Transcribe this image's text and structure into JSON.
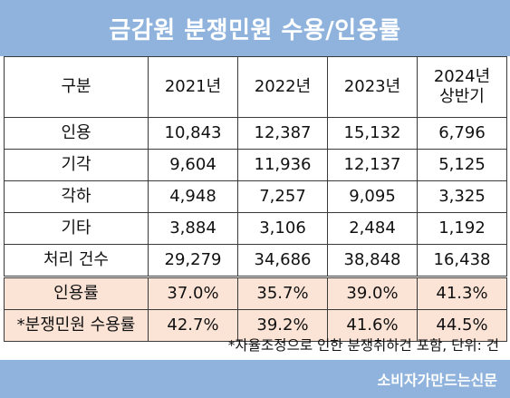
{
  "title": "금감원 분쟁민원 수용/인용률",
  "table": {
    "headers": [
      "구분",
      "2021년",
      "2022년",
      "2023년",
      [
        "2024년",
        "상반기"
      ]
    ],
    "rows": [
      {
        "label": "인용",
        "values": [
          "10,843",
          "12,387",
          "15,132",
          "6,796"
        ]
      },
      {
        "label": "기각",
        "values": [
          "9,604",
          "11,936",
          "12,137",
          "5,125"
        ]
      },
      {
        "label": "각하",
        "values": [
          "4,948",
          "7,257",
          "9,095",
          "3,325"
        ]
      },
      {
        "label": "기타",
        "values": [
          "3,884",
          "3,106",
          "2,484",
          "1,192"
        ]
      },
      {
        "label": "처리 건수",
        "values": [
          "29,279",
          "34,686",
          "38,848",
          "16,438"
        ]
      }
    ],
    "rate_rows": [
      {
        "label": "인용률",
        "values": [
          "37.0%",
          "35.7%",
          "39.0%",
          "41.3%"
        ]
      },
      {
        "label": "*분쟁민원 수용률",
        "values": [
          "42.7%",
          "39.2%",
          "41.6%",
          "44.5%"
        ]
      }
    ]
  },
  "footnote": "*자율조정으로 인한 분쟁취하건 포함, 단위: 건",
  "source": "소비자가만드는신문",
  "colors": {
    "banner": "#8fb3dd",
    "rate_highlight": "#fbe3d6",
    "grid": "#3a3a3a"
  }
}
